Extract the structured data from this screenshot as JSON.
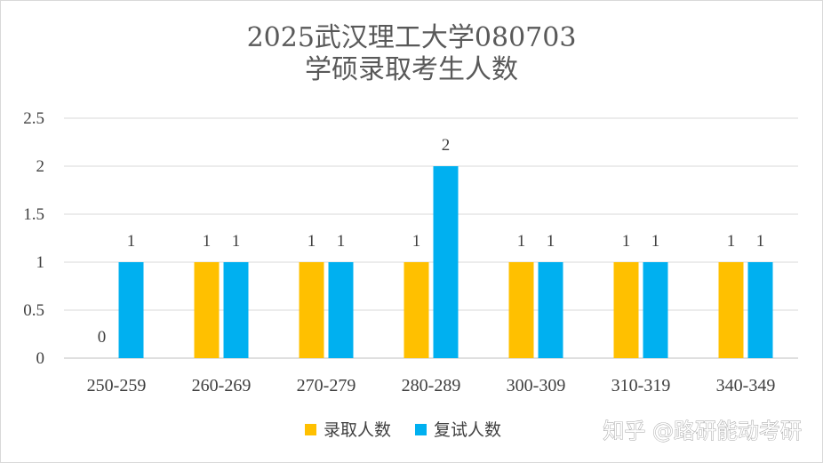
{
  "chart_data": {
    "type": "bar",
    "title": "2025武汉理工大学080703\n学硕录取考生人数",
    "categories": [
      "250-259",
      "260-269",
      "270-279",
      "280-289",
      "300-309",
      "310-319",
      "340-349"
    ],
    "series": [
      {
        "name": "录取人数",
        "color": "#FFC000",
        "values": [
          0,
          1,
          1,
          1,
          1,
          1,
          1
        ]
      },
      {
        "name": "复试人数",
        "color": "#00B0F0",
        "values": [
          1,
          1,
          1,
          2,
          1,
          1,
          1
        ]
      }
    ],
    "ylim": [
      0,
      2.5
    ],
    "yticks": [
      "0",
      "0.5",
      "1",
      "1.5",
      "2",
      "2.5"
    ],
    "grid": true,
    "legend": "bottom"
  },
  "watermark": "知乎 @路研能动考研"
}
